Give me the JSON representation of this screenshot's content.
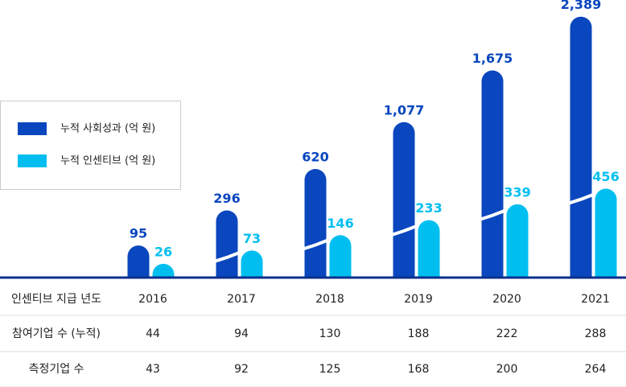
{
  "chart_data": {
    "type": "bar",
    "categories": [
      "2016",
      "2017",
      "2018",
      "2019",
      "2020",
      "2021"
    ],
    "series": [
      {
        "name": "누적 사회성과 (억 원)",
        "color": "#0a47be",
        "values": [
          95,
          296,
          620,
          1077,
          1675,
          2389
        ],
        "value_labels": [
          "95",
          "296",
          "620",
          "1,077",
          "1,675",
          "2,389"
        ]
      },
      {
        "name": "누적 인센티브 (억 원)",
        "color": "#00bff0",
        "values": [
          26,
          73,
          146,
          233,
          339,
          456
        ]
      }
    ],
    "ylim": [
      0,
      2500
    ],
    "y_scale_power": 0.65,
    "axis_break": true,
    "legend": "left",
    "category_label": "인센티브 지급 년도"
  },
  "table": {
    "rows": [
      {
        "label": "참여기업 수 (누적)",
        "values": [
          "44",
          "94",
          "130",
          "188",
          "222",
          "288"
        ]
      },
      {
        "label": "측정기업 수",
        "values": [
          "43",
          "92",
          "125",
          "168",
          "200",
          "264"
        ]
      }
    ]
  }
}
